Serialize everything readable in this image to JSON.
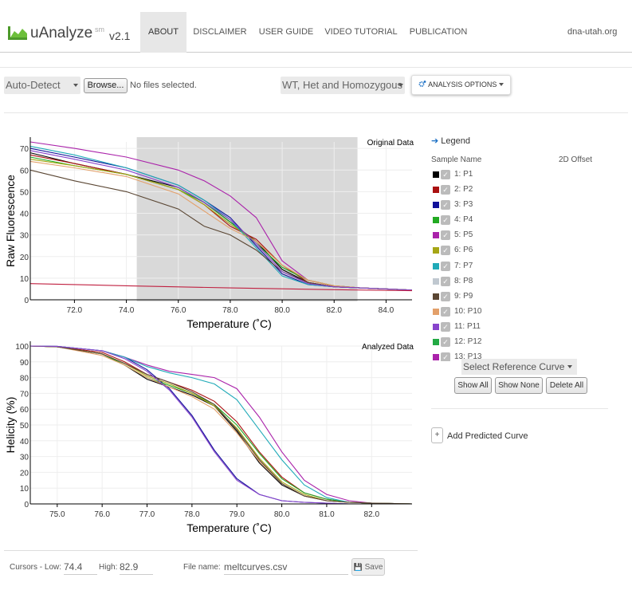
{
  "brand": {
    "name": "uAnalyze",
    "sup": "sm",
    "version": "v2.1"
  },
  "nav": {
    "items": [
      {
        "label": "ABOUT",
        "active": true
      },
      {
        "label": "DISCLAIMER",
        "active": false
      },
      {
        "label": "USER GUIDE",
        "active": false
      },
      {
        "label": "VIDEO TUTORIAL",
        "active": false
      },
      {
        "label": "PUBLICATION",
        "active": false
      }
    ],
    "domain": "dna-utah.org"
  },
  "toolbar": {
    "instrument_select": "Auto-Detect",
    "browse_label": "Browse...",
    "file_status": "No files selected.",
    "genotype_select": "WT, Het and Homozygous",
    "analysis_options": "ANALYSIS OPTIONS",
    "analysis_icon": "cogs-icon"
  },
  "chart_data": [
    {
      "type": "line",
      "title": "Original Data",
      "xlabel": "Temperature (˚C)",
      "ylabel": "Raw Fluorescence",
      "xlim": [
        70.3,
        85.0
      ],
      "ylim": [
        0,
        73
      ],
      "xticks": [
        "72.0",
        "74.0",
        "76.0",
        "78.0",
        "80.0",
        "82.0",
        "84.0"
      ],
      "xtick_values": [
        72,
        74,
        76,
        78,
        80,
        82,
        84
      ],
      "yticks": [
        "0",
        "10",
        "20",
        "30",
        "40",
        "50",
        "60",
        "70"
      ],
      "ytick_values": [
        0,
        10,
        20,
        30,
        40,
        50,
        60,
        70
      ],
      "shaded_region": [
        74.4,
        82.9
      ],
      "series": [
        {
          "color": "#000000",
          "x": [
            70.3,
            72,
            74,
            76,
            77,
            78,
            79,
            80,
            81,
            82,
            83,
            85
          ],
          "y": [
            68,
            63,
            58,
            52,
            45,
            36,
            27,
            14,
            8,
            6,
            5.5,
            4.5
          ]
        },
        {
          "color": "#aa1111",
          "x": [
            70.3,
            72,
            74,
            76,
            77,
            78,
            79,
            80,
            81,
            82,
            83,
            85
          ],
          "y": [
            67,
            63,
            58,
            51,
            44,
            34,
            28,
            16,
            8,
            6,
            5.5,
            4.5
          ]
        },
        {
          "color": "#11119a",
          "x": [
            70.3,
            72,
            74,
            76,
            77,
            78,
            79,
            80,
            81,
            82,
            83,
            85
          ],
          "y": [
            70,
            66,
            61,
            53,
            46,
            38,
            25,
            12,
            7,
            6,
            5.5,
            4.5
          ]
        },
        {
          "color": "#22aa22",
          "x": [
            70.3,
            72,
            74,
            76,
            77,
            78,
            79,
            80,
            81,
            82,
            83,
            85
          ],
          "y": [
            66,
            62,
            58,
            51,
            45,
            36,
            26,
            15,
            9,
            6.5,
            5.5,
            4.5
          ]
        },
        {
          "color": "#aa22aa",
          "x": [
            70.3,
            72,
            74,
            76,
            77,
            78,
            79,
            80,
            81,
            82,
            83,
            85
          ],
          "y": [
            73,
            70,
            66,
            60,
            55,
            48,
            38,
            18,
            9,
            6.5,
            5.5,
            4.5
          ]
        },
        {
          "color": "#a6a615",
          "x": [
            70.3,
            72,
            74,
            76,
            77,
            78,
            79,
            80,
            81,
            82,
            83,
            85
          ],
          "y": [
            65,
            62,
            58,
            51,
            44,
            35,
            27,
            16,
            9,
            6.5,
            5.5,
            4.5
          ]
        },
        {
          "color": "#20aab8",
          "x": [
            70.3,
            72,
            74,
            76,
            77,
            78,
            79,
            80,
            81,
            82,
            83,
            85
          ],
          "y": [
            71,
            67,
            61,
            53,
            46,
            37,
            24,
            11,
            7,
            6,
            5.5,
            4.5
          ]
        },
        {
          "color": "#e3a06a",
          "x": [
            70.3,
            72,
            74,
            76,
            77,
            78,
            79,
            80,
            81,
            82,
            83,
            85
          ],
          "y": [
            64,
            61,
            57,
            49,
            41,
            33,
            27,
            16,
            9,
            6.5,
            5.5,
            4.5
          ]
        },
        {
          "color": "#5a4633",
          "x": [
            70.3,
            72,
            74,
            76,
            77,
            78,
            79,
            80,
            81,
            82,
            83,
            85
          ],
          "y": [
            60,
            55,
            50,
            42,
            34,
            30,
            23,
            13,
            8,
            6,
            5.5,
            4.5
          ]
        },
        {
          "color": "#8844cc",
          "x": [
            70.3,
            72,
            74,
            76,
            77,
            78,
            79,
            80,
            81,
            82,
            83,
            85
          ],
          "y": [
            69,
            65,
            60,
            52,
            45,
            37,
            26,
            13,
            7.5,
            6,
            5.5,
            4.5
          ]
        },
        {
          "color": "#c02040",
          "x": [
            70.3,
            74,
            78,
            82,
            85
          ],
          "y": [
            7.5,
            6.5,
            5.5,
            4.7,
            4.2
          ]
        }
      ]
    },
    {
      "type": "line",
      "title": "Analyzed Data",
      "xlabel": "Temperature (˚C)",
      "ylabel": "Helicity (%)",
      "xlim": [
        74.4,
        82.9
      ],
      "ylim": [
        0,
        100
      ],
      "xticks": [
        "75.0",
        "76.0",
        "77.0",
        "78.0",
        "79.0",
        "80.0",
        "81.0",
        "82.0"
      ],
      "xtick_values": [
        75,
        76,
        77,
        78,
        79,
        80,
        81,
        82
      ],
      "yticks": [
        "0",
        "10",
        "20",
        "30",
        "40",
        "50",
        "60",
        "70",
        "80",
        "90",
        "100"
      ],
      "ytick_values": [
        0,
        10,
        20,
        30,
        40,
        50,
        60,
        70,
        80,
        90,
        100
      ],
      "series": [
        {
          "color": "#000000",
          "x": [
            74.4,
            75,
            76,
            76.5,
            77,
            77.5,
            78,
            78.5,
            79,
            79.5,
            80,
            80.5,
            81,
            81.5,
            82,
            82.9
          ],
          "y": [
            100,
            99.5,
            95,
            88,
            79,
            74,
            69,
            62,
            46,
            26,
            12,
            5,
            2,
            1,
            0.5,
            0
          ]
        },
        {
          "color": "#aa1111",
          "x": [
            74.4,
            75,
            76,
            76.5,
            77,
            77.5,
            78,
            78.5,
            79,
            79.5,
            80,
            80.5,
            81,
            81.5,
            82,
            82.9
          ],
          "y": [
            100,
            99.5,
            96,
            90,
            82,
            77,
            72,
            65,
            52,
            33,
            17,
            7,
            3,
            1,
            0.5,
            0
          ]
        },
        {
          "color": "#11119a",
          "x": [
            74.4,
            75,
            76,
            76.5,
            77,
            77.5,
            78,
            78.5,
            79,
            79.5,
            80,
            80.5,
            81,
            81.5,
            82,
            82.9
          ],
          "y": [
            100,
            99.8,
            97,
            93,
            85,
            73,
            56,
            34,
            16,
            6,
            2,
            1,
            0.5,
            0,
            0,
            0
          ]
        },
        {
          "color": "#22aa22",
          "x": [
            74.4,
            75,
            76,
            76.5,
            77,
            77.5,
            78,
            78.5,
            79,
            79.5,
            80,
            80.5,
            81,
            81.5,
            82,
            82.9
          ],
          "y": [
            100,
            99.5,
            95,
            88,
            80,
            75,
            70,
            63,
            50,
            32,
            16,
            7,
            3,
            1,
            0.5,
            0
          ]
        },
        {
          "color": "#aa22aa",
          "x": [
            74.4,
            75,
            76,
            76.5,
            77,
            77.5,
            78,
            78.5,
            79,
            79.5,
            80,
            80.5,
            81,
            81.5,
            82,
            82.9
          ],
          "y": [
            100,
            99.8,
            97,
            93,
            88,
            84,
            82,
            80,
            73,
            55,
            33,
            15,
            6,
            2,
            0.5,
            0
          ]
        },
        {
          "color": "#a6a615",
          "x": [
            74.4,
            75,
            76,
            76.5,
            77,
            77.5,
            78,
            78.5,
            79,
            79.5,
            80,
            80.5,
            81,
            81.5,
            82,
            82.9
          ],
          "y": [
            100,
            99.5,
            95,
            89,
            81,
            76,
            70,
            62,
            48,
            29,
            14,
            6,
            2,
            1,
            0.5,
            0
          ]
        },
        {
          "color": "#20aab8",
          "x": [
            74.4,
            75,
            76,
            76.5,
            77,
            77.5,
            78,
            78.5,
            79,
            79.5,
            80,
            80.5,
            81,
            81.5,
            82,
            82.9
          ],
          "y": [
            100,
            99.8,
            97,
            93,
            87,
            83,
            80,
            76,
            66,
            47,
            28,
            12,
            4,
            1,
            0.5,
            0
          ]
        },
        {
          "color": "#e3a06a",
          "x": [
            74.4,
            75,
            76,
            76.5,
            77,
            77.5,
            78,
            78.5,
            79,
            79.5,
            80,
            80.5,
            81,
            81.5,
            82,
            82.9
          ],
          "y": [
            100,
            99.5,
            94,
            88,
            80,
            74,
            68,
            60,
            45,
            27,
            13,
            5,
            2,
            1,
            0.5,
            0
          ]
        },
        {
          "color": "#5a4633",
          "x": [
            74.4,
            75,
            76,
            76.5,
            77,
            77.5,
            78,
            78.5,
            79,
            79.5,
            80,
            80.5,
            81,
            81.5,
            82,
            82.9
          ],
          "y": [
            100,
            99.5,
            95,
            89,
            82,
            77,
            71,
            63,
            47,
            28,
            13,
            5,
            2,
            1,
            0.5,
            0
          ]
        },
        {
          "color": "#8844cc",
          "x": [
            74.4,
            75,
            76,
            76.5,
            77,
            77.5,
            78,
            78.5,
            79,
            79.5,
            80,
            80.5,
            81,
            81.5,
            82,
            82.9
          ],
          "y": [
            100,
            99.8,
            97,
            92,
            84,
            72,
            55,
            33,
            15,
            6,
            2,
            1,
            0.5,
            0,
            0,
            0
          ]
        }
      ]
    }
  ],
  "legend": {
    "title": "Legend",
    "col_name": "Sample Name",
    "col_offset": "2D Offset",
    "samples": [
      {
        "label": "1: P1",
        "color": "#000000"
      },
      {
        "label": "2: P2",
        "color": "#aa1111"
      },
      {
        "label": "3: P3",
        "color": "#11119a"
      },
      {
        "label": "4: P4",
        "color": "#22aa22"
      },
      {
        "label": "5: P5",
        "color": "#aa22aa"
      },
      {
        "label": "6: P6",
        "color": "#a6a615"
      },
      {
        "label": "7: P7",
        "color": "#20aab8"
      },
      {
        "label": "8: P8",
        "color": "#c0c8d0"
      },
      {
        "label": "9: P9",
        "color": "#5a4633"
      },
      {
        "label": "10: P10",
        "color": "#e3a06a"
      },
      {
        "label": "11: P11",
        "color": "#8844cc"
      },
      {
        "label": "12: P12",
        "color": "#22aa44"
      },
      {
        "label": "13: P13",
        "color": "#aa22aa"
      }
    ],
    "ref_select": "Select Reference Curve",
    "show_all": "Show All",
    "show_none": "Show None",
    "delete_all": "Delete All",
    "add_btn": "+",
    "add_label": "Add Predicted Curve"
  },
  "footer": {
    "cursors_label": "Cursors - Low:",
    "low": "74.4",
    "high_label": "High:",
    "high": "82.9",
    "file_label": "File name:",
    "file_name": "meltcurves.csv",
    "save": "Save"
  }
}
